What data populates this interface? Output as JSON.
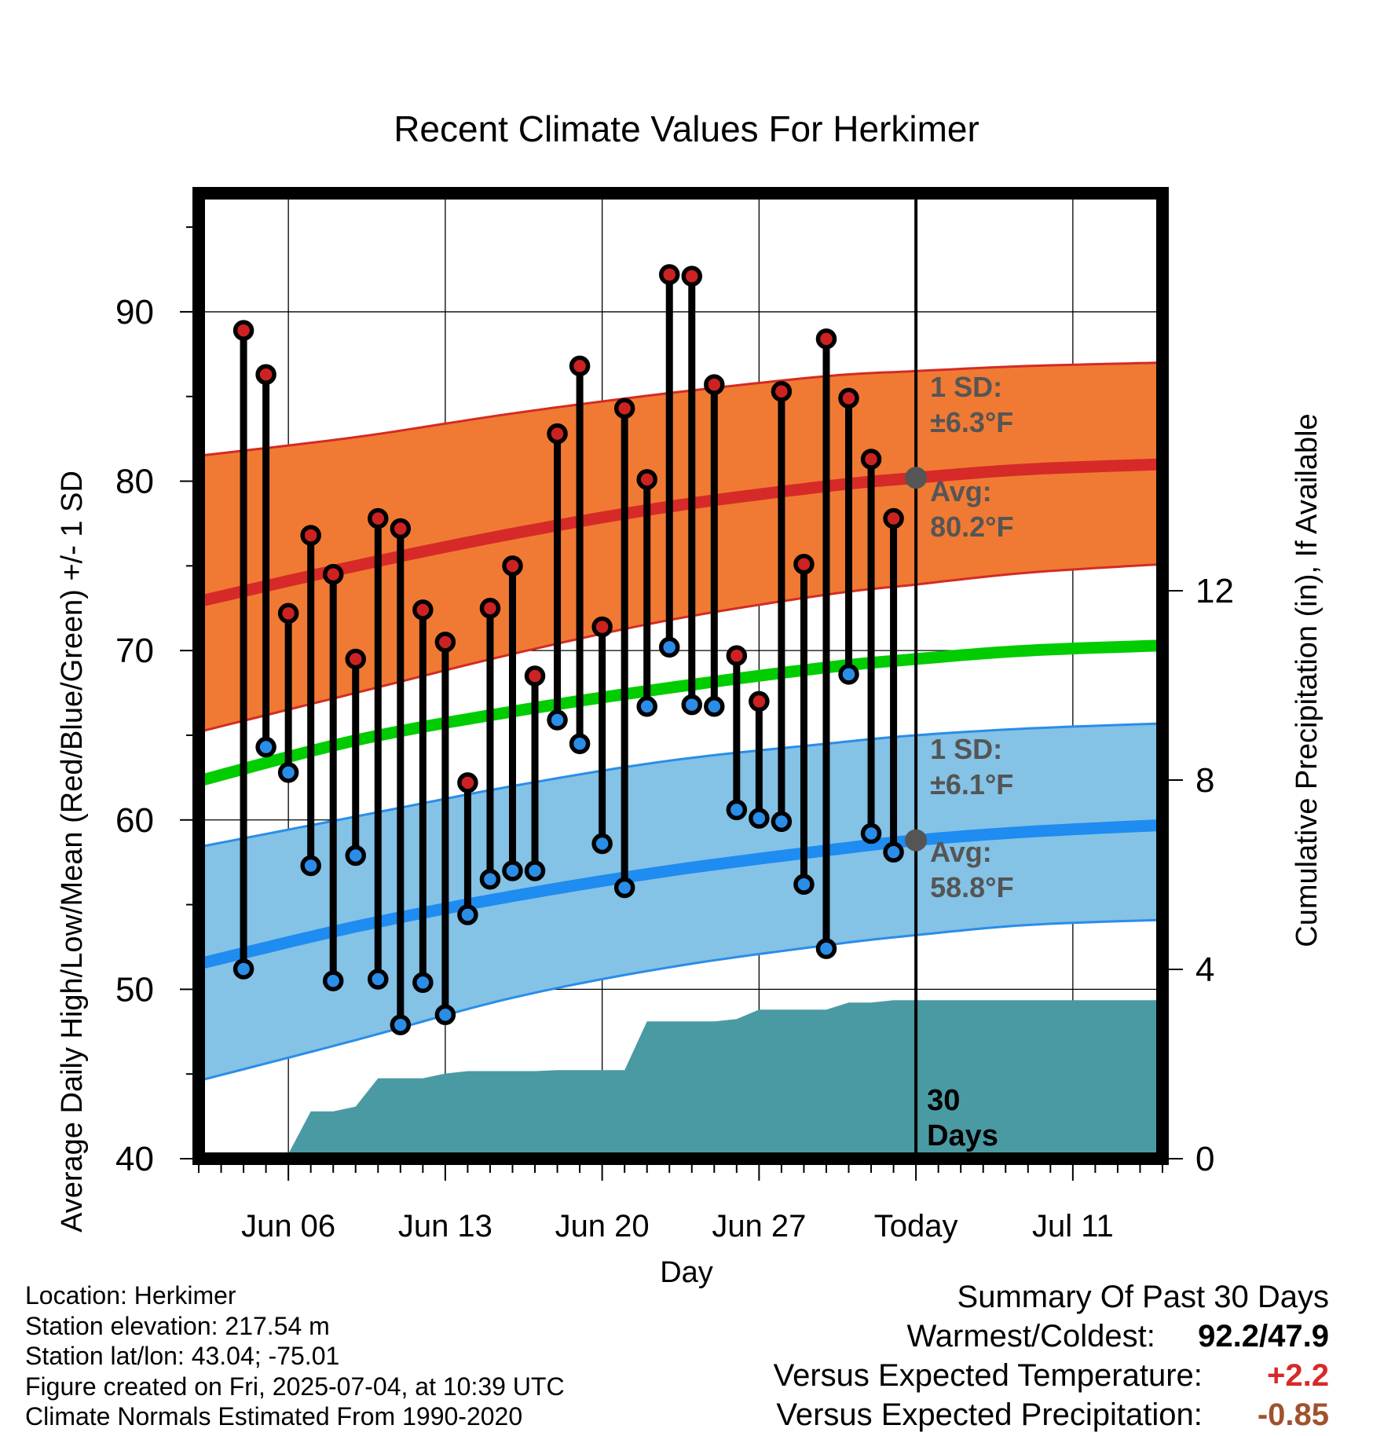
{
  "chart_data": {
    "type": "line",
    "title": "Recent Climate Values For Herkimer",
    "xlabel": "Day",
    "ylabel": "Average Daily High/Low/Mean (Red/Blue/Green) +/- 1 SD",
    "y2label": "Cumulative Precipitation (in), If Available",
    "xlim": [
      "2025-06-02",
      "2025-07-15"
    ],
    "ylim": [
      40,
      97
    ],
    "y_ticks": [
      "40",
      "50",
      "60",
      "70",
      "80",
      "90"
    ],
    "y2lim": [
      0,
      20.4
    ],
    "y2_ticks": [
      "0",
      "4",
      "8",
      "12"
    ],
    "x_ticks": [
      {
        "date": "2025-06-06",
        "label": "Jun 06"
      },
      {
        "date": "2025-06-13",
        "label": "Jun 13"
      },
      {
        "date": "2025-06-20",
        "label": "Jun 20"
      },
      {
        "date": "2025-06-27",
        "label": "Jun 27"
      },
      {
        "date": "2025-07-04",
        "label": "Today"
      },
      {
        "date": "2025-07-11",
        "label": "Jul 11"
      }
    ],
    "grid": true,
    "today": "2025-07-04",
    "window_label": "30 Days",
    "daily_high": [
      {
        "date": "2025-06-04",
        "value": 88.9
      },
      {
        "date": "2025-06-05",
        "value": 86.3
      },
      {
        "date": "2025-06-06",
        "value": 72.2
      },
      {
        "date": "2025-06-07",
        "value": 76.8
      },
      {
        "date": "2025-06-08",
        "value": 74.5
      },
      {
        "date": "2025-06-09",
        "value": 69.5
      },
      {
        "date": "2025-06-10",
        "value": 77.8
      },
      {
        "date": "2025-06-11",
        "value": 77.2
      },
      {
        "date": "2025-06-12",
        "value": 72.4
      },
      {
        "date": "2025-06-13",
        "value": 70.5
      },
      {
        "date": "2025-06-14",
        "value": 62.2
      },
      {
        "date": "2025-06-15",
        "value": 72.5
      },
      {
        "date": "2025-06-16",
        "value": 75.0
      },
      {
        "date": "2025-06-17",
        "value": 68.5
      },
      {
        "date": "2025-06-18",
        "value": 82.8
      },
      {
        "date": "2025-06-19",
        "value": 86.8
      },
      {
        "date": "2025-06-20",
        "value": 71.4
      },
      {
        "date": "2025-06-21",
        "value": 84.3
      },
      {
        "date": "2025-06-22",
        "value": 80.1
      },
      {
        "date": "2025-06-23",
        "value": 92.2
      },
      {
        "date": "2025-06-24",
        "value": 92.1
      },
      {
        "date": "2025-06-25",
        "value": 85.7
      },
      {
        "date": "2025-06-26",
        "value": 69.7
      },
      {
        "date": "2025-06-27",
        "value": 67.0
      },
      {
        "date": "2025-06-28",
        "value": 85.3
      },
      {
        "date": "2025-06-29",
        "value": 75.1
      },
      {
        "date": "2025-06-30",
        "value": 88.4
      },
      {
        "date": "2025-07-01",
        "value": 84.9
      },
      {
        "date": "2025-07-02",
        "value": 81.3
      },
      {
        "date": "2025-07-03",
        "value": 77.8
      }
    ],
    "daily_low": [
      {
        "date": "2025-06-04",
        "value": 51.2
      },
      {
        "date": "2025-06-05",
        "value": 64.3
      },
      {
        "date": "2025-06-06",
        "value": 62.8
      },
      {
        "date": "2025-06-07",
        "value": 57.3
      },
      {
        "date": "2025-06-08",
        "value": 50.5
      },
      {
        "date": "2025-06-09",
        "value": 57.9
      },
      {
        "date": "2025-06-10",
        "value": 50.6
      },
      {
        "date": "2025-06-11",
        "value": 47.9
      },
      {
        "date": "2025-06-12",
        "value": 50.4
      },
      {
        "date": "2025-06-13",
        "value": 48.5
      },
      {
        "date": "2025-06-14",
        "value": 54.4
      },
      {
        "date": "2025-06-15",
        "value": 56.5
      },
      {
        "date": "2025-06-16",
        "value": 57.0
      },
      {
        "date": "2025-06-17",
        "value": 57.0
      },
      {
        "date": "2025-06-18",
        "value": 65.9
      },
      {
        "date": "2025-06-19",
        "value": 64.5
      },
      {
        "date": "2025-06-20",
        "value": 58.6
      },
      {
        "date": "2025-06-21",
        "value": 56.0
      },
      {
        "date": "2025-06-22",
        "value": 66.7
      },
      {
        "date": "2025-06-23",
        "value": 70.2
      },
      {
        "date": "2025-06-24",
        "value": 66.8
      },
      {
        "date": "2025-06-25",
        "value": 66.7
      },
      {
        "date": "2025-06-26",
        "value": 60.6
      },
      {
        "date": "2025-06-27",
        "value": 60.1
      },
      {
        "date": "2025-06-28",
        "value": 59.9
      },
      {
        "date": "2025-06-29",
        "value": 56.2
      },
      {
        "date": "2025-06-30",
        "value": 52.4
      },
      {
        "date": "2025-07-01",
        "value": 68.6
      },
      {
        "date": "2025-07-02",
        "value": 59.2
      },
      {
        "date": "2025-07-03",
        "value": 58.1
      }
    ],
    "normal_high": {
      "x": [
        "2025-06-02",
        "2025-06-09",
        "2025-06-16",
        "2025-06-23",
        "2025-06-30",
        "2025-07-04",
        "2025-07-09",
        "2025-07-15"
      ],
      "avg": [
        72.9,
        75.0,
        76.9,
        78.5,
        79.7,
        80.2,
        80.7,
        81.0
      ],
      "upper": [
        81.5,
        82.6,
        84.0,
        85.2,
        86.2,
        86.5,
        86.8,
        87.0
      ],
      "lower": [
        65.2,
        67.5,
        69.8,
        71.8,
        73.3,
        73.9,
        74.6,
        75.1
      ]
    },
    "normal_mean": {
      "x": [
        "2025-06-02",
        "2025-06-09",
        "2025-06-16",
        "2025-06-23",
        "2025-06-30",
        "2025-07-04",
        "2025-07-09",
        "2025-07-15"
      ],
      "avg": [
        62.3,
        64.7,
        66.4,
        67.8,
        69.0,
        69.5,
        70.0,
        70.3
      ]
    },
    "normal_low": {
      "x": [
        "2025-06-02",
        "2025-06-09",
        "2025-06-16",
        "2025-06-23",
        "2025-06-30",
        "2025-07-04",
        "2025-07-09",
        "2025-07-15"
      ],
      "avg": [
        51.5,
        53.7,
        55.5,
        57.0,
        58.2,
        58.8,
        59.3,
        59.7
      ],
      "upper": [
        58.4,
        60.2,
        62.0,
        63.5,
        64.5,
        65.0,
        65.4,
        65.7
      ],
      "lower": [
        44.6,
        47.0,
        49.5,
        51.3,
        52.6,
        53.2,
        53.8,
        54.1
      ]
    },
    "precip_cumulative": {
      "x": [
        "2025-06-02",
        "2025-06-05",
        "2025-06-06",
        "2025-06-07",
        "2025-06-08",
        "2025-06-09",
        "2025-06-10",
        "2025-06-11",
        "2025-06-12",
        "2025-06-13",
        "2025-06-14",
        "2025-06-15",
        "2025-06-16",
        "2025-06-17",
        "2025-06-18",
        "2025-06-19",
        "2025-06-20",
        "2025-06-21",
        "2025-06-22",
        "2025-06-23",
        "2025-06-24",
        "2025-06-25",
        "2025-06-26",
        "2025-06-27",
        "2025-06-28",
        "2025-06-29",
        "2025-06-30",
        "2025-07-01",
        "2025-07-02",
        "2025-07-03",
        "2025-07-04",
        "2025-07-15"
      ],
      "values": [
        0,
        0,
        0.1,
        1.0,
        1.0,
        1.1,
        1.7,
        1.7,
        1.7,
        1.8,
        1.85,
        1.85,
        1.85,
        1.85,
        1.87,
        1.87,
        1.87,
        1.87,
        2.9,
        2.9,
        2.9,
        2.9,
        2.95,
        3.15,
        3.15,
        3.15,
        3.15,
        3.3,
        3.3,
        3.35,
        3.35,
        3.35
      ]
    },
    "annotations": [
      {
        "text_line1": "1 SD:",
        "text_line2": "±6.3°F",
        "series": "high"
      },
      {
        "text_line1": "Avg:",
        "text_line2": "80.2°F",
        "series": "high"
      },
      {
        "text_line1": "1 SD:",
        "text_line2": "±6.1°F",
        "series": "low"
      },
      {
        "text_line1": "Avg:",
        "text_line2": "58.8°F",
        "series": "low"
      }
    ],
    "colors": {
      "high_band": "#f07a33",
      "high_edge": "#d42b24",
      "high_avg": "#d62a28",
      "mean_avg": "#00cc00",
      "low_band": "#84c2e6",
      "low_edge": "#2a8de8",
      "low_avg": "#1e8cf0",
      "precip": "#4a9aa3",
      "high_dot": "#cc2222",
      "low_dot": "#2a8de8",
      "avg_dot": "#555555",
      "annotation_text": "#555555"
    }
  },
  "info": {
    "location": "Location: Herkimer",
    "elevation": "Station elevation: 217.54 m",
    "latlon": "Station lat/lon: 43.04; -75.01",
    "created": "Figure created on Fri, 2025-07-04, at 10:39 UTC",
    "normals": "Climate Normals Estimated From 1990-2020"
  },
  "summary": {
    "title": "Summary Of Past 30 Days",
    "warmest_coldest_label": "Warmest/Coldest:",
    "warmest_coldest_value": "92.2/47.9",
    "temp_label": "Versus Expected Temperature:",
    "temp_value": "+2.2",
    "temp_color": "#d62a28",
    "precip_label": "Versus Expected Precipitation:",
    "precip_value": "-0.85",
    "precip_color": "#a0522d"
  }
}
